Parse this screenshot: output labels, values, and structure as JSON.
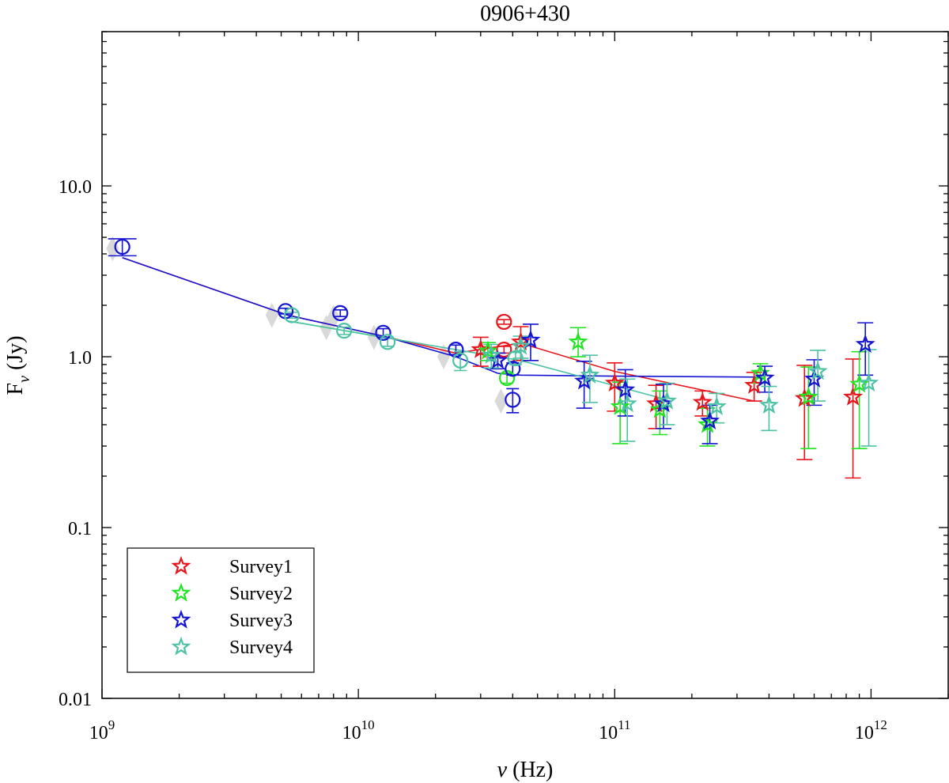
{
  "chart_data": {
    "type": "scatter",
    "title": "0906+430",
    "xlabel": {
      "base": "ν",
      "unit": " (Hz)"
    },
    "ylabel": {
      "base": "F",
      "sub": "ν",
      "unit": " (Jy)"
    },
    "xscale": "log",
    "yscale": "log",
    "xlim": [
      1000000000.0,
      2000000000000.0
    ],
    "ylim": [
      0.01,
      80
    ],
    "x_ticks": [
      {
        "value": 1000000000.0,
        "base": "10",
        "exp": "9"
      },
      {
        "value": 10000000000.0,
        "base": "10",
        "exp": "10"
      },
      {
        "value": 100000000000.0,
        "base": "10",
        "exp": "11"
      },
      {
        "value": 1000000000000.0,
        "base": "10",
        "exp": "12"
      }
    ],
    "y_ticks": [
      {
        "value": 0.01,
        "label": "0.01"
      },
      {
        "value": 0.1,
        "label": "0.1"
      },
      {
        "value": 1,
        "label": "1.0"
      },
      {
        "value": 10,
        "label": "10.0"
      }
    ],
    "grid": false,
    "legend_position": "bottom-left",
    "series": [
      {
        "name": "Survey1",
        "color": "#e8141c",
        "stars": [
          {
            "x": 30000000000.0,
            "y": 1.1,
            "lo": 0.88,
            "hi": 1.3
          },
          {
            "x": 43000000000.0,
            "y": 1.22,
            "lo": 0.95,
            "hi": 1.5
          },
          {
            "x": 100000000000.0,
            "y": 0.7,
            "lo": 0.48,
            "hi": 0.92
          },
          {
            "x": 145000000000.0,
            "y": 0.53,
            "lo": 0.38,
            "hi": 0.68
          },
          {
            "x": 220000000000.0,
            "y": 0.54,
            "lo": 0.45,
            "hi": 0.63
          },
          {
            "x": 350000000000.0,
            "y": 0.68,
            "lo": 0.55,
            "hi": 0.81
          },
          {
            "x": 550000000000.0,
            "y": 0.57,
            "lo": 0.25,
            "hi": 0.89
          },
          {
            "x": 850000000000.0,
            "y": 0.58,
            "lo": 0.195,
            "hi": 0.97
          }
        ],
        "circles": [
          {
            "x": 37000000000.0,
            "y": 1.6,
            "lo": 1.55,
            "hi": 1.65
          },
          {
            "x": 37000000000.0,
            "y": 1.1,
            "lo": 1.05,
            "hi": 1.15
          }
        ],
        "line": {
          "x": [
            1200000000.0,
            5300000000.0,
            12500000000.0,
            24000000000.0,
            43000000000.0,
            100000000000.0,
            350000000000.0
          ],
          "y": [
            3.8,
            1.75,
            1.32,
            1.05,
            1.2,
            0.82,
            0.55
          ]
        }
      },
      {
        "name": "Survey2",
        "color": "#22e322",
        "stars": [
          {
            "x": 32000000000.0,
            "y": 1.08,
            "lo": 0.95,
            "hi": 1.21
          },
          {
            "x": 72000000000.0,
            "y": 1.22,
            "lo": 1.0,
            "hi": 1.48
          },
          {
            "x": 105000000000.0,
            "y": 0.51,
            "lo": 0.31,
            "hi": 0.71
          },
          {
            "x": 150000000000.0,
            "y": 0.49,
            "lo": 0.35,
            "hi": 0.63
          },
          {
            "x": 230000000000.0,
            "y": 0.4,
            "lo": 0.3,
            "hi": 0.5
          },
          {
            "x": 370000000000.0,
            "y": 0.8,
            "lo": 0.7,
            "hi": 0.91
          },
          {
            "x": 570000000000.0,
            "y": 0.58,
            "lo": 0.29,
            "hi": 0.87
          },
          {
            "x": 900000000000.0,
            "y": 0.69,
            "lo": 0.29,
            "hi": 1.07
          }
        ],
        "circles": [
          {
            "x": 38000000000.0,
            "y": 0.75,
            "lo": 0.7,
            "hi": 0.8
          }
        ],
        "line": {
          "x": [
            5300000000.0,
            12500000000.0
          ],
          "y": [
            1.62,
            1.3
          ]
        }
      },
      {
        "name": "Survey3",
        "color": "#1414d2",
        "stars": [
          {
            "x": 35000000000.0,
            "y": 0.95,
            "lo": 0.85,
            "hi": 1.05
          },
          {
            "x": 47000000000.0,
            "y": 1.25,
            "lo": 0.95,
            "hi": 1.55
          },
          {
            "x": 76000000000.0,
            "y": 0.72,
            "lo": 0.5,
            "hi": 0.94
          },
          {
            "x": 110000000000.0,
            "y": 0.64,
            "lo": 0.45,
            "hi": 0.84
          },
          {
            "x": 155000000000.0,
            "y": 0.53,
            "lo": 0.38,
            "hi": 0.69
          },
          {
            "x": 235000000000.0,
            "y": 0.42,
            "lo": 0.31,
            "hi": 0.52
          },
          {
            "x": 385000000000.0,
            "y": 0.75,
            "lo": 0.62,
            "hi": 0.88
          },
          {
            "x": 600000000000.0,
            "y": 0.74,
            "lo": 0.52,
            "hi": 0.96
          },
          {
            "x": 950000000000.0,
            "y": 1.18,
            "lo": 0.78,
            "hi": 1.58
          }
        ],
        "circles": [
          {
            "x": 1200000000.0,
            "y": 4.4,
            "lo": 3.9,
            "hi": 4.9
          },
          {
            "x": 5200000000.0,
            "y": 1.85,
            "lo": 1.78,
            "hi": 1.92
          },
          {
            "x": 8500000000.0,
            "y": 1.8,
            "lo": 1.72,
            "hi": 1.88
          },
          {
            "x": 12500000000.0,
            "y": 1.38,
            "lo": 1.3,
            "hi": 1.46
          },
          {
            "x": 24000000000.0,
            "y": 1.1,
            "lo": 1.03,
            "hi": 1.17
          },
          {
            "x": 40000000000.0,
            "y": 0.85,
            "lo": 0.78,
            "hi": 0.92
          },
          {
            "x": 40000000000.0,
            "y": 0.56,
            "lo": 0.47,
            "hi": 0.65
          }
        ],
        "line": {
          "x": [
            1200000000.0,
            5300000000.0,
            12500000000.0,
            24000000000.0,
            35000000000.0,
            43000000000.0,
            100000000000.0,
            370000000000.0
          ],
          "y": [
            3.8,
            1.75,
            1.32,
            1.0,
            0.8,
            0.78,
            0.77,
            0.76
          ]
        }
      },
      {
        "name": "Survey4",
        "color": "#4ec2a4",
        "stars": [
          {
            "x": 33000000000.0,
            "y": 1.02,
            "lo": 0.86,
            "hi": 1.18
          },
          {
            "x": 43000000000.0,
            "y": 1.15,
            "lo": 0.98,
            "hi": 1.32
          },
          {
            "x": 80000000000.0,
            "y": 0.78,
            "lo": 0.54,
            "hi": 1.02
          },
          {
            "x": 112000000000.0,
            "y": 0.53,
            "lo": 0.32,
            "hi": 0.74
          },
          {
            "x": 160000000000.0,
            "y": 0.55,
            "lo": 0.4,
            "hi": 0.7
          },
          {
            "x": 250000000000.0,
            "y": 0.51,
            "lo": 0.41,
            "hi": 0.61
          },
          {
            "x": 400000000000.0,
            "y": 0.52,
            "lo": 0.37,
            "hi": 0.67
          },
          {
            "x": 620000000000.0,
            "y": 0.82,
            "lo": 0.55,
            "hi": 1.09
          },
          {
            "x": 980000000000.0,
            "y": 0.7,
            "lo": 0.3,
            "hi": 1.1
          }
        ],
        "circles": [
          {
            "x": 5500000000.0,
            "y": 1.75,
            "lo": 1.68,
            "hi": 1.82
          },
          {
            "x": 8800000000.0,
            "y": 1.42,
            "lo": 1.35,
            "hi": 1.49
          },
          {
            "x": 13000000000.0,
            "y": 1.22,
            "lo": 1.15,
            "hi": 1.29
          },
          {
            "x": 25000000000.0,
            "y": 0.95,
            "lo": 0.83,
            "hi": 1.07
          },
          {
            "x": 41000000000.0,
            "y": 0.98,
            "lo": 0.9,
            "hi": 1.06
          }
        ],
        "line": {
          "x": [
            5300000000.0,
            12500000000.0,
            24000000000.0,
            43000000000.0,
            160000000000.0
          ],
          "y": [
            1.62,
            1.3,
            1.1,
            0.95,
            0.56
          ]
        }
      }
    ],
    "archival_points": {
      "color": "#d9d9d9",
      "points": [
        {
          "x": 1100000000.0,
          "y": 4.3
        },
        {
          "x": 4600000000.0,
          "y": 1.75
        },
        {
          "x": 7500000000.0,
          "y": 1.48
        },
        {
          "x": 8000000000.0,
          "y": 1.7
        },
        {
          "x": 11500000000.0,
          "y": 1.3
        },
        {
          "x": 21500000000.0,
          "y": 1.0
        },
        {
          "x": 36000000000.0,
          "y": 0.55
        }
      ]
    }
  }
}
